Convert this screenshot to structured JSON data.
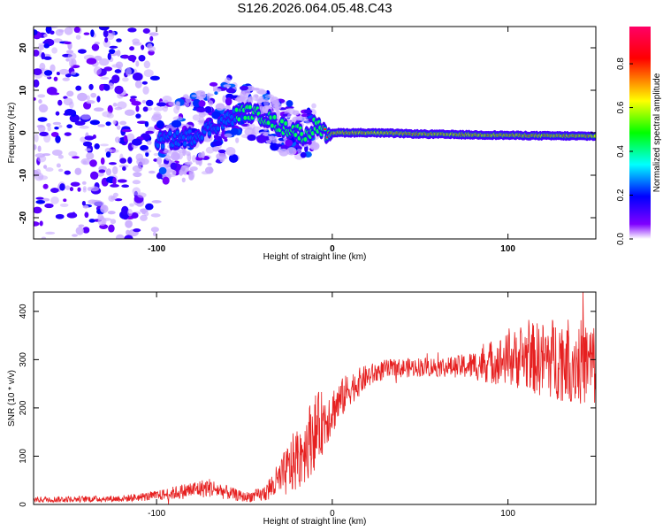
{
  "title": "S126.2026.064.05.48.C43",
  "chart_data": [
    {
      "type": "heatmap",
      "xlabel": "Height of straight line (km)",
      "ylabel": "Frequency (Hz)",
      "xlim": [
        -170,
        150
      ],
      "ylim": [
        -25,
        25
      ],
      "xticks": [
        -100,
        0,
        100
      ],
      "yticks": [
        -20,
        -10,
        0,
        10,
        20
      ],
      "colorbar": {
        "label": "Normalized spectral amplitude",
        "range": [
          0,
          0.97
        ],
        "ticks": [
          0.0,
          0.2,
          0.4,
          0.6,
          0.8
        ],
        "colors": [
          "#ffffff",
          "#7f00ff",
          "#0000ff",
          "#00ffff",
          "#00ff00",
          "#ffff00",
          "#ff0000",
          "#ff0066"
        ]
      },
      "ridge": {
        "x": [
          -100,
          -80,
          -60,
          -50,
          -45,
          -40,
          -35,
          -30,
          -20,
          -15,
          -10,
          -5,
          0,
          20,
          50,
          80,
          100,
          120,
          150
        ],
        "y": [
          -2,
          -1,
          3,
          5,
          4.5,
          4,
          3,
          1.5,
          0.5,
          -1,
          2,
          0,
          0,
          0,
          -0.3,
          -0.5,
          -0.6,
          -0.7,
          -0.8
        ]
      }
    },
    {
      "type": "line",
      "xlabel": "Height of straight line (km)",
      "ylabel": "SNR (10 * v/v)",
      "xlim": [
        -170,
        150
      ],
      "ylim": [
        0,
        440
      ],
      "xticks": [
        -100,
        0,
        100
      ],
      "yticks": [
        0,
        100,
        200,
        300,
        400
      ],
      "color": "#e62020",
      "envelope": {
        "x": [
          -170,
          -120,
          -100,
          -80,
          -70,
          -60,
          -50,
          -40,
          -30,
          -20,
          -10,
          0,
          10,
          20,
          30,
          50,
          70,
          80,
          90,
          100,
          110,
          120,
          130,
          140,
          150
        ],
        "mean": [
          10,
          12,
          18,
          30,
          35,
          25,
          15,
          20,
          50,
          95,
          150,
          195,
          240,
          265,
          280,
          285,
          285,
          288,
          295,
          300,
          305,
          300,
          305,
          295,
          290
        ],
        "spread": [
          6,
          7,
          10,
          18,
          20,
          15,
          10,
          15,
          40,
          70,
          80,
          50,
          35,
          25,
          20,
          20,
          22,
          30,
          45,
          55,
          70,
          80,
          90,
          90,
          90
        ]
      }
    }
  ]
}
